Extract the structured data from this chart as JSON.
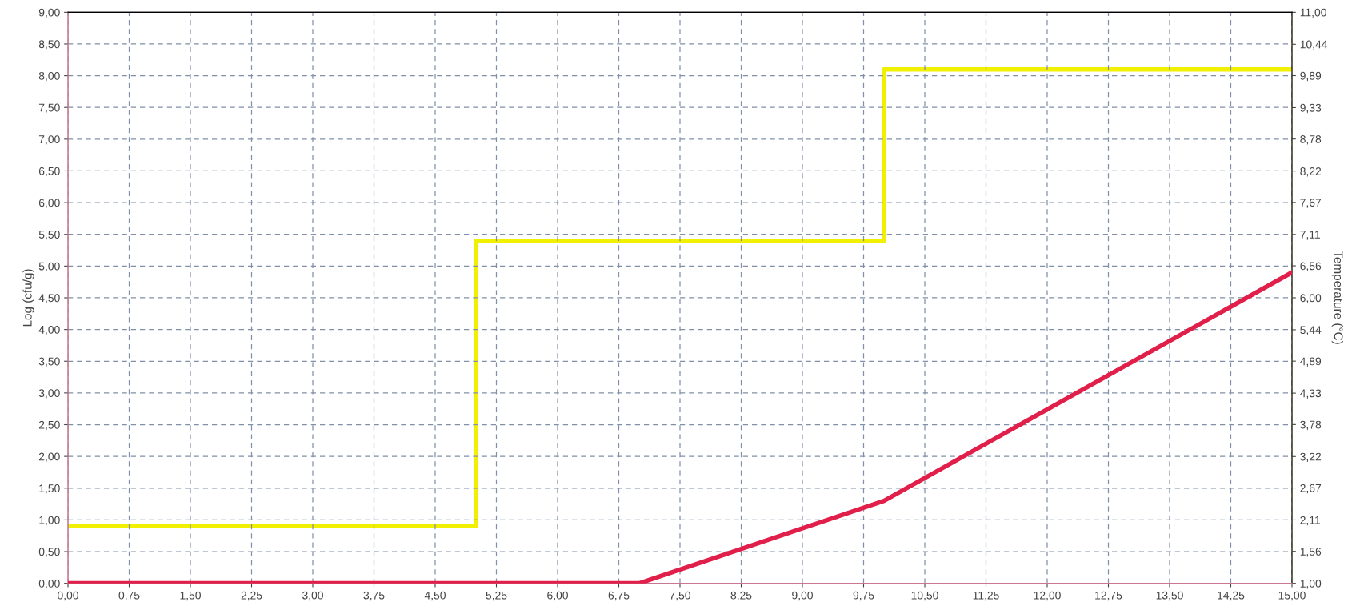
{
  "chart_data": {
    "type": "line",
    "ylabel": "Log (cfu/g)",
    "y2label": "Temperature (°C)",
    "xlim": [
      0,
      15
    ],
    "ylim": [
      0,
      9
    ],
    "y2lim": [
      1,
      11
    ],
    "xticks": [
      {
        "value": 0,
        "label": "0,00"
      },
      {
        "value": 0.75,
        "label": "0,75"
      },
      {
        "value": 1.5,
        "label": "1,50"
      },
      {
        "value": 2.25,
        "label": "2,25"
      },
      {
        "value": 3,
        "label": "3,00"
      },
      {
        "value": 3.75,
        "label": "3,75"
      },
      {
        "value": 4.5,
        "label": "4,50"
      },
      {
        "value": 5.25,
        "label": "5,25"
      },
      {
        "value": 6,
        "label": "6,00"
      },
      {
        "value": 6.75,
        "label": "6,75"
      },
      {
        "value": 7.5,
        "label": "7,50"
      },
      {
        "value": 8.25,
        "label": "8,25"
      },
      {
        "value": 9,
        "label": "9,00"
      },
      {
        "value": 9.75,
        "label": "9,75"
      },
      {
        "value": 10.5,
        "label": "10,50"
      },
      {
        "value": 11.25,
        "label": "11,25"
      },
      {
        "value": 12,
        "label": "12,00"
      },
      {
        "value": 12.75,
        "label": "12,75"
      },
      {
        "value": 13.5,
        "label": "13,50"
      },
      {
        "value": 14.25,
        "label": "14,25"
      },
      {
        "value": 15,
        "label": "15,00"
      }
    ],
    "yticks": [
      {
        "value": 0,
        "label": "0,00"
      },
      {
        "value": 0.5,
        "label": "0,50"
      },
      {
        "value": 1,
        "label": "1,00"
      },
      {
        "value": 1.5,
        "label": "1,50"
      },
      {
        "value": 2,
        "label": "2,00"
      },
      {
        "value": 2.5,
        "label": "2,50"
      },
      {
        "value": 3,
        "label": "3,00"
      },
      {
        "value": 3.5,
        "label": "3,50"
      },
      {
        "value": 4,
        "label": "4,00"
      },
      {
        "value": 4.5,
        "label": "4,50"
      },
      {
        "value": 5,
        "label": "5,00"
      },
      {
        "value": 5.5,
        "label": "5,50"
      },
      {
        "value": 6,
        "label": "6,00"
      },
      {
        "value": 6.5,
        "label": "6,50"
      },
      {
        "value": 7,
        "label": "7,00"
      },
      {
        "value": 7.5,
        "label": "7,50"
      },
      {
        "value": 8,
        "label": "8,00"
      },
      {
        "value": 8.5,
        "label": "8,50"
      },
      {
        "value": 9,
        "label": "9,00"
      }
    ],
    "y2ticks": [
      {
        "value": 1,
        "label": "1,00"
      },
      {
        "value": 1.56,
        "label": "1,56"
      },
      {
        "value": 2.11,
        "label": "2,11"
      },
      {
        "value": 2.67,
        "label": "2,67"
      },
      {
        "value": 3.22,
        "label": "3,22"
      },
      {
        "value": 3.78,
        "label": "3,78"
      },
      {
        "value": 4.33,
        "label": "4,33"
      },
      {
        "value": 4.89,
        "label": "4,89"
      },
      {
        "value": 5.44,
        "label": "5,44"
      },
      {
        "value": 6,
        "label": "6,00"
      },
      {
        "value": 6.56,
        "label": "6,56"
      },
      {
        "value": 7.11,
        "label": "7,11"
      },
      {
        "value": 7.67,
        "label": "7,67"
      },
      {
        "value": 8.22,
        "label": "8,22"
      },
      {
        "value": 8.78,
        "label": "8,78"
      },
      {
        "value": 9.33,
        "label": "9,33"
      },
      {
        "value": 9.89,
        "label": "9,89"
      },
      {
        "value": 10.44,
        "label": "10,44"
      },
      {
        "value": 11,
        "label": "11,00"
      }
    ],
    "grid": true,
    "line_style": "solid",
    "marker": "none",
    "series": [
      {
        "color": "#e0204a",
        "x": [
          0,
          7,
          10,
          15
        ],
        "values": [
          0,
          0,
          1.3,
          4.9
        ]
      },
      {
        "type": "step",
        "axis": "y2",
        "color": "#f0f000",
        "x": [
          0,
          5,
          10,
          15
        ],
        "values": [
          2.0,
          7.0,
          10.0,
          10.0
        ]
      }
    ]
  }
}
